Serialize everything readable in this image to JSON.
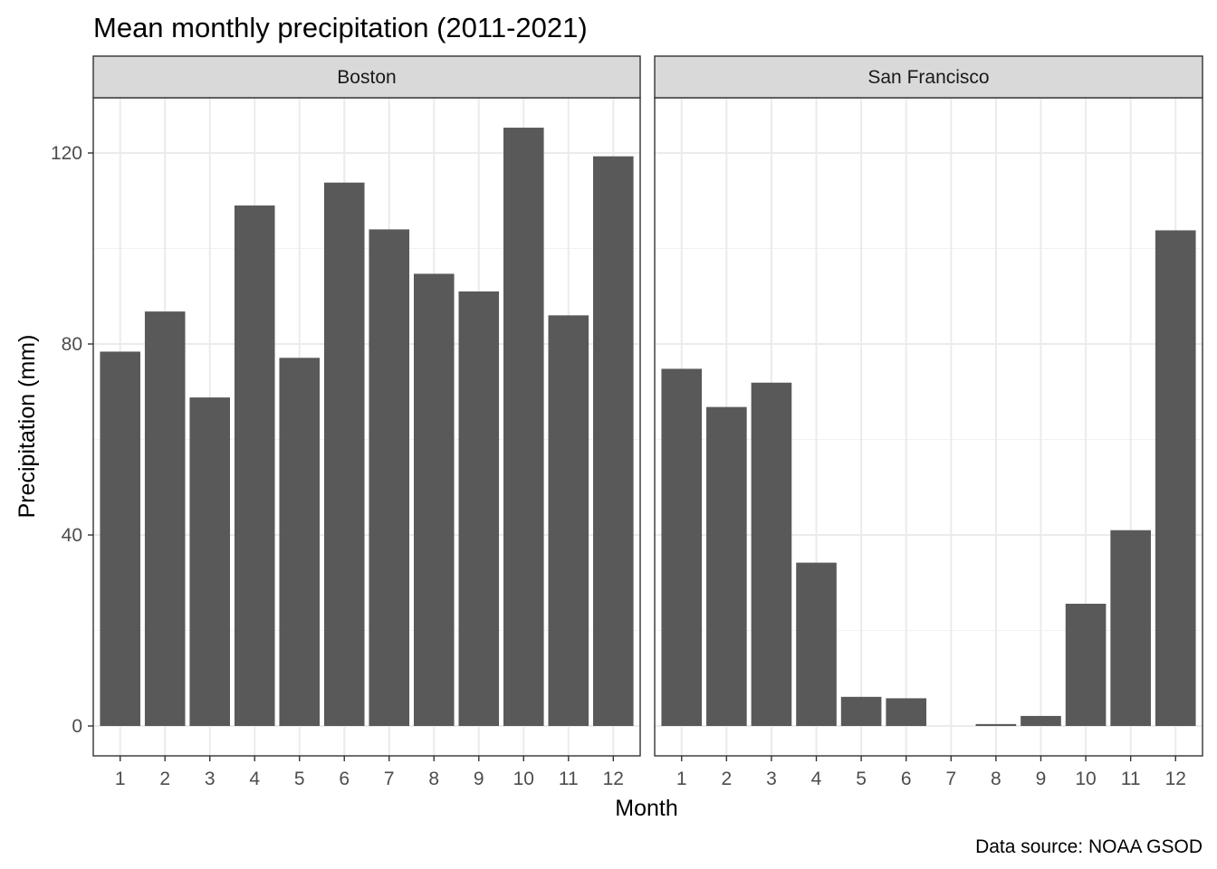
{
  "chart_data": {
    "type": "bar",
    "title": "Mean monthly precipitation (2011-2021)",
    "xlabel": "Month",
    "ylabel": "Precipitation (mm)",
    "caption": "Data source: NOAA GSOD",
    "categories": [
      "1",
      "2",
      "3",
      "4",
      "5",
      "6",
      "7",
      "8",
      "9",
      "10",
      "11",
      "12"
    ],
    "ylim": [
      -6.3,
      132
    ],
    "y_ticks": [
      0,
      40,
      80,
      120
    ],
    "y_tick_labels": [
      "0",
      "40",
      "80",
      "120"
    ],
    "grid": true,
    "theme": "bw",
    "bar_color": "#595959",
    "panels": [
      {
        "name": "Boston",
        "values": [
          78.4,
          86.8,
          68.8,
          109.0,
          77.1,
          113.8,
          104.0,
          94.7,
          91.0,
          125.3,
          86.0,
          119.3
        ]
      },
      {
        "name": "San Francisco",
        "values": [
          74.8,
          66.8,
          71.9,
          34.2,
          6.1,
          5.8,
          0.0,
          0.4,
          2.1,
          25.6,
          41.0,
          103.8
        ]
      }
    ]
  }
}
